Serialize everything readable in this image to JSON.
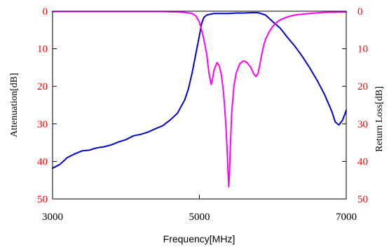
{
  "chart_data": {
    "type": "line",
    "xlabel": "Frequency[MHz]",
    "ylabel_left": "Attenuation[dB]",
    "ylabel_right": "Return Loss[dB]",
    "xlim": [
      3000,
      7000
    ],
    "ylim": [
      0,
      50
    ],
    "y_inverted": true,
    "grid": false,
    "legend": "none",
    "x_ticks": [
      3000,
      5000,
      7000
    ],
    "y_ticks": [
      0,
      10,
      20,
      30,
      40,
      50
    ],
    "x_tick_labels": [
      "3000",
      "5000",
      "7000"
    ],
    "y_tick_labels": [
      "0",
      "10",
      "20",
      "30",
      "40",
      "50"
    ],
    "colors": {
      "attenuation": "#0000cc",
      "return_loss": "#ff00ff",
      "tick_labels_y": "#ff0000",
      "frame": "#000000"
    },
    "series": [
      {
        "key": "attenuation",
        "x": [
          3000,
          3100,
          3200,
          3300,
          3400,
          3500,
          3600,
          3700,
          3800,
          3900,
          4000,
          4100,
          4200,
          4300,
          4400,
          4500,
          4600,
          4700,
          4800,
          4850,
          4900,
          4950,
          5000,
          5030,
          5060,
          5100,
          5150,
          5200,
          5300,
          5400,
          5500,
          5600,
          5700,
          5800,
          5900,
          6000,
          6100,
          6200,
          6300,
          6400,
          6500,
          6600,
          6700,
          6800,
          6850,
          6900,
          6950,
          7000
        ],
        "values": [
          41.8,
          40.8,
          39.0,
          38.0,
          37.2,
          37.0,
          36.4,
          36.1,
          35.6,
          34.8,
          34.2,
          33.2,
          32.8,
          32.2,
          31.3,
          30.5,
          29.0,
          27.2,
          23.6,
          20.7,
          16.5,
          11.5,
          6.5,
          3.3,
          1.7,
          1.0,
          0.8,
          0.6,
          0.6,
          0.6,
          0.5,
          0.5,
          0.4,
          0.4,
          1.0,
          2.8,
          4.5,
          7.0,
          9.3,
          12.0,
          15.0,
          18.3,
          22.0,
          26.5,
          29.5,
          30.3,
          29.0,
          26.4
        ]
      },
      {
        "key": "return_loss",
        "x": [
          3000,
          3500,
          4000,
          4500,
          4700,
          4800,
          4900,
          4950,
          5000,
          5050,
          5100,
          5130,
          5160,
          5180,
          5200,
          5240,
          5270,
          5300,
          5330,
          5360,
          5380,
          5390,
          5400,
          5410,
          5420,
          5440,
          5470,
          5500,
          5550,
          5600,
          5650,
          5700,
          5740,
          5770,
          5800,
          5830,
          5870,
          5900,
          5950,
          6000,
          6050,
          6100,
          6200,
          6300,
          6500,
          6700,
          7000
        ],
        "values": [
          0.1,
          0.1,
          0.1,
          0.1,
          0.2,
          0.3,
          0.6,
          1.2,
          2.9,
          6.5,
          11.5,
          16.5,
          19.5,
          18.0,
          15.6,
          13.7,
          14.5,
          17.0,
          22.0,
          30.0,
          38.0,
          43.0,
          46.8,
          43.0,
          37.0,
          27.0,
          20.0,
          16.5,
          14.0,
          13.2,
          13.7,
          15.0,
          16.7,
          17.4,
          16.5,
          13.5,
          9.5,
          7.5,
          5.5,
          4.0,
          3.0,
          2.3,
          1.5,
          1.0,
          0.6,
          0.3,
          0.2
        ]
      }
    ]
  }
}
